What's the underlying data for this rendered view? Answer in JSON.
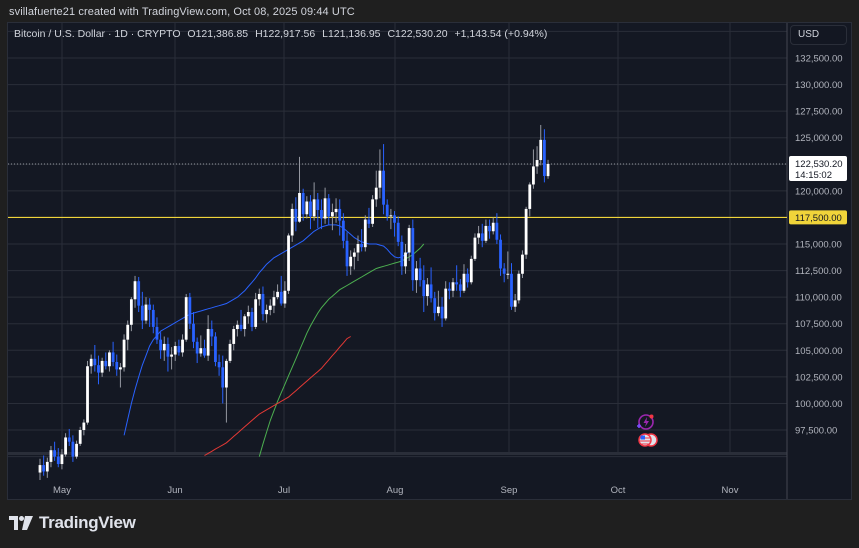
{
  "credit": "svillafuerte21 created with TradingView.com, Oct 08, 2025 09:44 UTC",
  "legend": {
    "symbol": "Bitcoin / U.S. Dollar · 1D · CRYPTO",
    "open": "O121,386.85",
    "high": "H122,917.56",
    "low": "L121,136.95",
    "close": "C122,530.20",
    "change": "+1,143.54 (+0.94%)"
  },
  "currency_button": "USD",
  "price_axis": {
    "ticks": [
      "132,500.00",
      "130,000.00",
      "127,500.00",
      "125,000.00",
      "122,500.00",
      "120,000.00",
      "117,500.00",
      "115,000.00",
      "112,500.00",
      "110,000.00",
      "107,500.00",
      "105,000.00",
      "102,500.00",
      "100,000.00",
      "97,500.00"
    ],
    "last_price_label": "122,530.20",
    "countdown": "14:15:02",
    "level_label": "117,500.00"
  },
  "time_axis": {
    "ticks": [
      "May",
      "Jun",
      "Jul",
      "Aug",
      "Sep",
      "Oct",
      "Nov"
    ]
  },
  "brand": "TradingView",
  "colors": {
    "background": "#141823",
    "up_candle": "#ffffff",
    "down_candle": "#2962ff",
    "level_line": "#f0d43a",
    "ma_fast": "#2962ff",
    "ma_mid": "#4caf50",
    "ma_slow": "#e53935",
    "grid": "#2a2e39",
    "text": "#b2b5be"
  },
  "chart_data": {
    "type": "candlestick",
    "title": "Bitcoin / U.S. Dollar · 1D · CRYPTO",
    "xlabel": "",
    "ylabel": "USD",
    "ylim": [
      95000,
      135000
    ],
    "x_ticks": [
      "May",
      "Jun",
      "Jul",
      "Aug",
      "Sep",
      "Oct",
      "Nov"
    ],
    "last": {
      "open": 121386.85,
      "high": 122917.56,
      "low": 121136.95,
      "close": 122530.2,
      "change": 1143.54,
      "change_pct": 0.94
    },
    "horizontal_levels": [
      {
        "price": 117500,
        "label": "117,500.00",
        "color": "#f0d43a"
      }
    ],
    "candles_start": "Apr 21",
    "candles": [
      [
        93500,
        94800,
        92800,
        94200
      ],
      [
        94200,
        95100,
        93200,
        93600
      ],
      [
        93600,
        94900,
        93000,
        94500
      ],
      [
        94500,
        96000,
        94000,
        95600
      ],
      [
        95600,
        96400,
        94600,
        95000
      ],
      [
        95000,
        95800,
        94000,
        94300
      ],
      [
        94300,
        95700,
        93800,
        95200
      ],
      [
        95200,
        97200,
        95000,
        96800
      ],
      [
        96800,
        97600,
        96000,
        96400
      ],
      [
        96400,
        97000,
        94500,
        95000
      ],
      [
        95000,
        96500,
        94800,
        96200
      ],
      [
        96200,
        97800,
        96000,
        97500
      ],
      [
        97500,
        98500,
        97000,
        98200
      ],
      [
        98200,
        104000,
        98000,
        103500
      ],
      [
        103500,
        104600,
        102800,
        104200
      ],
      [
        104200,
        105500,
        103000,
        103600
      ],
      [
        103600,
        104500,
        101800,
        102900
      ],
      [
        102900,
        104300,
        102500,
        104000
      ],
      [
        104000,
        104800,
        103200,
        103500
      ],
      [
        103500,
        105000,
        103000,
        104800
      ],
      [
        104800,
        105800,
        103500,
        103900
      ],
      [
        103900,
        104600,
        102600,
        103200
      ],
      [
        103200,
        103800,
        101500,
        103400
      ],
      [
        103400,
        106500,
        103000,
        106000
      ],
      [
        106000,
        107800,
        105000,
        107400
      ],
      [
        107400,
        110000,
        106800,
        109800
      ],
      [
        109800,
        112000,
        109000,
        111500
      ],
      [
        111500,
        111900,
        108600,
        109200
      ],
      [
        109200,
        110500,
        107000,
        107800
      ],
      [
        107800,
        110000,
        107500,
        109300
      ],
      [
        109300,
        109900,
        107200,
        108800
      ],
      [
        108800,
        109300,
        106600,
        107200
      ],
      [
        107200,
        108100,
        105600,
        106000
      ],
      [
        106000,
        106700,
        104200,
        105000
      ],
      [
        105000,
        106300,
        104000,
        105600
      ],
      [
        105600,
        106200,
        103000,
        104400
      ],
      [
        104400,
        105300,
        103200,
        104600
      ],
      [
        104600,
        105800,
        104000,
        105400
      ],
      [
        105400,
        106000,
        104500,
        104800
      ],
      [
        104800,
        106500,
        104400,
        106000
      ],
      [
        106000,
        110300,
        105800,
        110000
      ],
      [
        110000,
        110400,
        107000,
        107500
      ],
      [
        107500,
        108600,
        105200,
        105800
      ],
      [
        105800,
        106200,
        103800,
        104700
      ],
      [
        104700,
        106400,
        104400,
        105200
      ],
      [
        105200,
        106000,
        104300,
        104500
      ],
      [
        104500,
        108300,
        104000,
        107000
      ],
      [
        107000,
        107800,
        105400,
        106300
      ],
      [
        106300,
        106700,
        103500,
        103900
      ],
      [
        103900,
        104600,
        102600,
        103400
      ],
      [
        103400,
        104500,
        100000,
        101500
      ],
      [
        101500,
        104200,
        98200,
        104000
      ],
      [
        104000,
        106000,
        103800,
        105600
      ],
      [
        105600,
        107300,
        105000,
        107000
      ],
      [
        107000,
        107800,
        106300,
        107400
      ],
      [
        107400,
        108800,
        106800,
        107000
      ],
      [
        107000,
        108400,
        106300,
        108200
      ],
      [
        108200,
        109200,
        107500,
        108600
      ],
      [
        108600,
        109000,
        106800,
        107200
      ],
      [
        107200,
        110400,
        107000,
        109800
      ],
      [
        109800,
        110800,
        109200,
        110300
      ],
      [
        110300,
        111000,
        107800,
        108400
      ],
      [
        108400,
        109300,
        107600,
        108800
      ],
      [
        108800,
        109800,
        108300,
        109200
      ],
      [
        109200,
        110600,
        108500,
        110000
      ],
      [
        110000,
        111200,
        109800,
        110500
      ],
      [
        110500,
        112000,
        109200,
        109400
      ],
      [
        109400,
        111500,
        109000,
        110600
      ],
      [
        110600,
        116000,
        110300,
        115800
      ],
      [
        115800,
        118800,
        115200,
        118300
      ],
      [
        118300,
        119400,
        116200,
        117100
      ],
      [
        117100,
        123200,
        117000,
        119800
      ],
      [
        119800,
        120200,
        117200,
        117800
      ],
      [
        117800,
        119500,
        117400,
        119000
      ],
      [
        119000,
        119600,
        116400,
        117600
      ],
      [
        117600,
        120800,
        117200,
        119200
      ],
      [
        119200,
        119800,
        116500,
        118200
      ],
      [
        118200,
        119200,
        116400,
        117400
      ],
      [
        117400,
        120300,
        116900,
        119300
      ],
      [
        119300,
        119700,
        116800,
        117600
      ],
      [
        117600,
        118800,
        116300,
        118000
      ],
      [
        118000,
        119300,
        117000,
        118300
      ],
      [
        118300,
        119200,
        115800,
        117200
      ],
      [
        117200,
        117900,
        114600,
        115300
      ],
      [
        115300,
        116100,
        112000,
        112900
      ],
      [
        112900,
        114400,
        112100,
        113800
      ],
      [
        113800,
        114600,
        112600,
        114200
      ],
      [
        114200,
        115800,
        113400,
        115000
      ],
      [
        115000,
        116400,
        114300,
        114700
      ],
      [
        114700,
        117700,
        114300,
        117300
      ],
      [
        117300,
        118400,
        116500,
        116900
      ],
      [
        116900,
        119600,
        116600,
        119200
      ],
      [
        119200,
        121900,
        118500,
        120300
      ],
      [
        120300,
        123900,
        119300,
        121900
      ],
      [
        121900,
        124400,
        117800,
        118700
      ],
      [
        118700,
        119200,
        117200,
        117600
      ],
      [
        117600,
        118300,
        116400,
        117700
      ],
      [
        117700,
        118100,
        115700,
        117000
      ],
      [
        117000,
        117600,
        114800,
        115200
      ],
      [
        115200,
        115800,
        112100,
        112900
      ],
      [
        112900,
        115000,
        112200,
        114200
      ],
      [
        114200,
        116800,
        113400,
        116500
      ],
      [
        116500,
        117300,
        110600,
        111600
      ],
      [
        111600,
        113400,
        110400,
        112700
      ],
      [
        112700,
        113700,
        111000,
        111600
      ],
      [
        111600,
        113000,
        108600,
        110100
      ],
      [
        110100,
        111800,
        109200,
        111200
      ],
      [
        111200,
        112800,
        109500,
        109900
      ],
      [
        109900,
        110500,
        107800,
        108500
      ],
      [
        108500,
        110600,
        108200,
        109100
      ],
      [
        109100,
        110000,
        107200,
        108000
      ],
      [
        108000,
        111500,
        107800,
        110800
      ],
      [
        110800,
        111400,
        109800,
        110600
      ],
      [
        110600,
        111800,
        110000,
        111400
      ],
      [
        111400,
        113000,
        110600,
        111200
      ],
      [
        111200,
        111700,
        110000,
        110600
      ],
      [
        110600,
        113100,
        110400,
        112200
      ],
      [
        112200,
        112700,
        110900,
        111400
      ],
      [
        111400,
        113900,
        111200,
        113600
      ],
      [
        113600,
        116000,
        113400,
        115600
      ],
      [
        115600,
        116700,
        115000,
        116000
      ],
      [
        116000,
        116900,
        114700,
        115300
      ],
      [
        115300,
        117300,
        115100,
        116700
      ],
      [
        116700,
        117300,
        115500,
        116200
      ],
      [
        116200,
        117500,
        115900,
        117000
      ],
      [
        117000,
        117900,
        115000,
        115400
      ],
      [
        115400,
        115900,
        112000,
        112700
      ],
      [
        112700,
        113200,
        111400,
        112200
      ],
      [
        112200,
        114300,
        111700,
        112200
      ],
      [
        112200,
        113200,
        108800,
        109100
      ],
      [
        109100,
        110300,
        108600,
        109700
      ],
      [
        109700,
        112500,
        109400,
        112200
      ],
      [
        112200,
        114400,
        111800,
        114000
      ],
      [
        114000,
        118500,
        113600,
        118300
      ],
      [
        118300,
        120800,
        117600,
        120600
      ],
      [
        120600,
        123900,
        120200,
        122300
      ],
      [
        122300,
        124200,
        121600,
        122900
      ],
      [
        122900,
        126200,
        122400,
        124800
      ],
      [
        124800,
        125800,
        120800,
        121400
      ],
      [
        121386.85,
        122917.56,
        121136.95,
        122530.2
      ]
    ],
    "series": [
      {
        "name": "MA fast (blue)",
        "color": "#2962ff",
        "start_index": 23,
        "values": [
          97000,
          98500,
          100000,
          101300,
          102500,
          103600,
          104500,
          105400,
          106000,
          106400,
          106800,
          107000,
          107200,
          107400,
          107600,
          107800,
          108000,
          108200,
          108400,
          108500,
          108600,
          108700,
          108800,
          108900,
          109000,
          109100,
          109200,
          109300,
          109400,
          109600,
          109800,
          110000,
          110300,
          110600,
          111000,
          111400,
          111800,
          112300,
          112700,
          113100,
          113400,
          113700,
          113900,
          114100,
          114300,
          114500,
          114700,
          114900,
          115100,
          115300,
          115600,
          115900,
          116200,
          116400,
          116600,
          116700,
          116800,
          116800,
          116800,
          116700,
          116500,
          116200,
          115900,
          115600,
          115400,
          115200,
          115100,
          115000,
          115000,
          115000,
          114900,
          114800,
          114500,
          114100,
          113800,
          113700,
          113800,
          114000,
          114300
        ]
      },
      {
        "name": "MA mid (green)",
        "color": "#4caf50",
        "start_index": 60,
        "values": [
          95000,
          96200,
          97300,
          98400,
          99300,
          100200,
          101000,
          101800,
          102600,
          103400,
          104200,
          105000,
          105800,
          106600,
          107300,
          107900,
          108500,
          109000,
          109400,
          109800,
          110100,
          110400,
          110700,
          110900,
          111100,
          111300,
          111500,
          111700,
          111900,
          112100,
          112300,
          112500,
          112700,
          112800,
          112900,
          113000,
          113100,
          113200,
          113300,
          113400,
          113600,
          113800,
          114000,
          114300,
          114600,
          115000
        ]
      },
      {
        "name": "MA slow (red)",
        "color": "#e53935",
        "start_index": 45,
        "values": [
          95100,
          95300,
          95500,
          95700,
          95900,
          96100,
          96300,
          96600,
          96900,
          97200,
          97500,
          97800,
          98100,
          98400,
          98700,
          99000,
          99200,
          99400,
          99600,
          99800,
          100000,
          100200,
          100400,
          100600,
          100900,
          101200,
          101500,
          101800,
          102100,
          102400,
          102700,
          103000,
          103300,
          103700,
          104100,
          104500,
          104900,
          105300,
          105700,
          106100,
          106300
        ]
      }
    ]
  }
}
